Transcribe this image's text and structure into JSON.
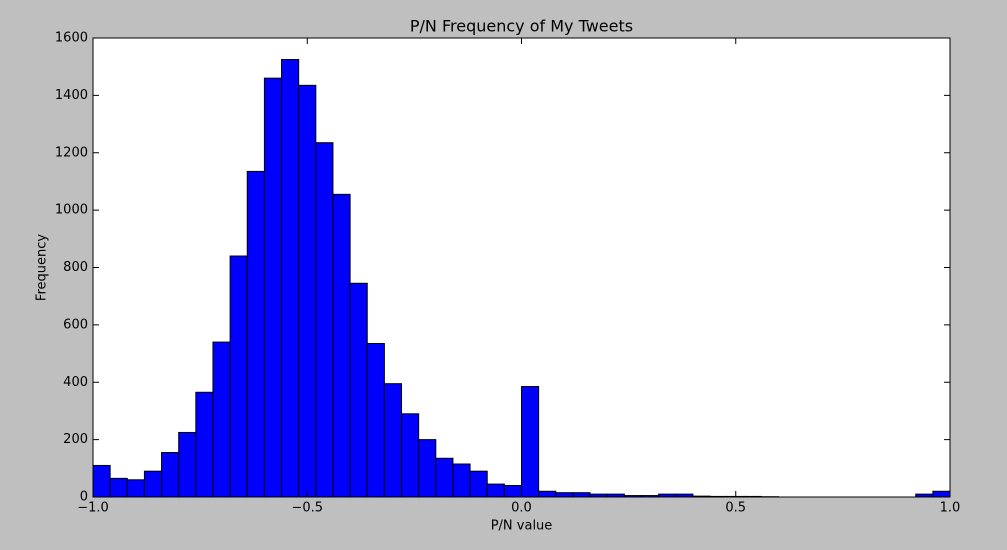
{
  "chart_data": {
    "type": "histogram",
    "title": "P/N Frequency of My Tweets",
    "x_label": "P/N value",
    "y_label": "Frequency",
    "bins": [
      -1,
      -0.96,
      -0.92,
      -0.88,
      -0.84,
      -0.8,
      -0.76,
      -0.72,
      -0.68,
      -0.64,
      -0.6,
      -0.56,
      -0.52,
      -0.48,
      -0.44,
      -0.4,
      -0.36,
      -0.32,
      -0.28,
      -0.24,
      -0.2,
      -0.16,
      -0.12,
      -0.08,
      -0.04,
      0,
      0.04,
      0.08,
      0.12,
      0.16,
      0.2,
      0.24,
      0.28,
      0.32,
      0.36,
      0.4,
      0.44,
      0.48,
      0.52,
      0.56,
      0.6,
      0.64,
      0.68,
      0.72,
      0.76,
      0.8,
      0.84,
      0.88,
      0.92,
      0.96,
      1
    ],
    "values": [
      110,
      65,
      60,
      90,
      155,
      225,
      365,
      540,
      840,
      1135,
      1460,
      1525,
      1435,
      1235,
      1055,
      745,
      535,
      395,
      290,
      200,
      135,
      115,
      90,
      45,
      40,
      385,
      20,
      15,
      15,
      10,
      10,
      5,
      5,
      10,
      10,
      3,
      2,
      2,
      2,
      1,
      0,
      0,
      0,
      0,
      0,
      0,
      0,
      0,
      10,
      20
    ],
    "color": "#0000ff",
    "xlim": [
      -1,
      1
    ],
    "ylim": [
      0,
      1600
    ],
    "xticks": [
      {
        "value": -1,
        "label": "−1.0"
      },
      {
        "value": -0.5,
        "label": "−0.5"
      },
      {
        "value": 0,
        "label": "0.0"
      },
      {
        "value": 0.5,
        "label": "0.5"
      },
      {
        "value": 1,
        "label": "1.0"
      }
    ],
    "yticks": [
      0,
      200,
      400,
      600,
      800,
      1000,
      1200,
      1400,
      1600
    ]
  }
}
